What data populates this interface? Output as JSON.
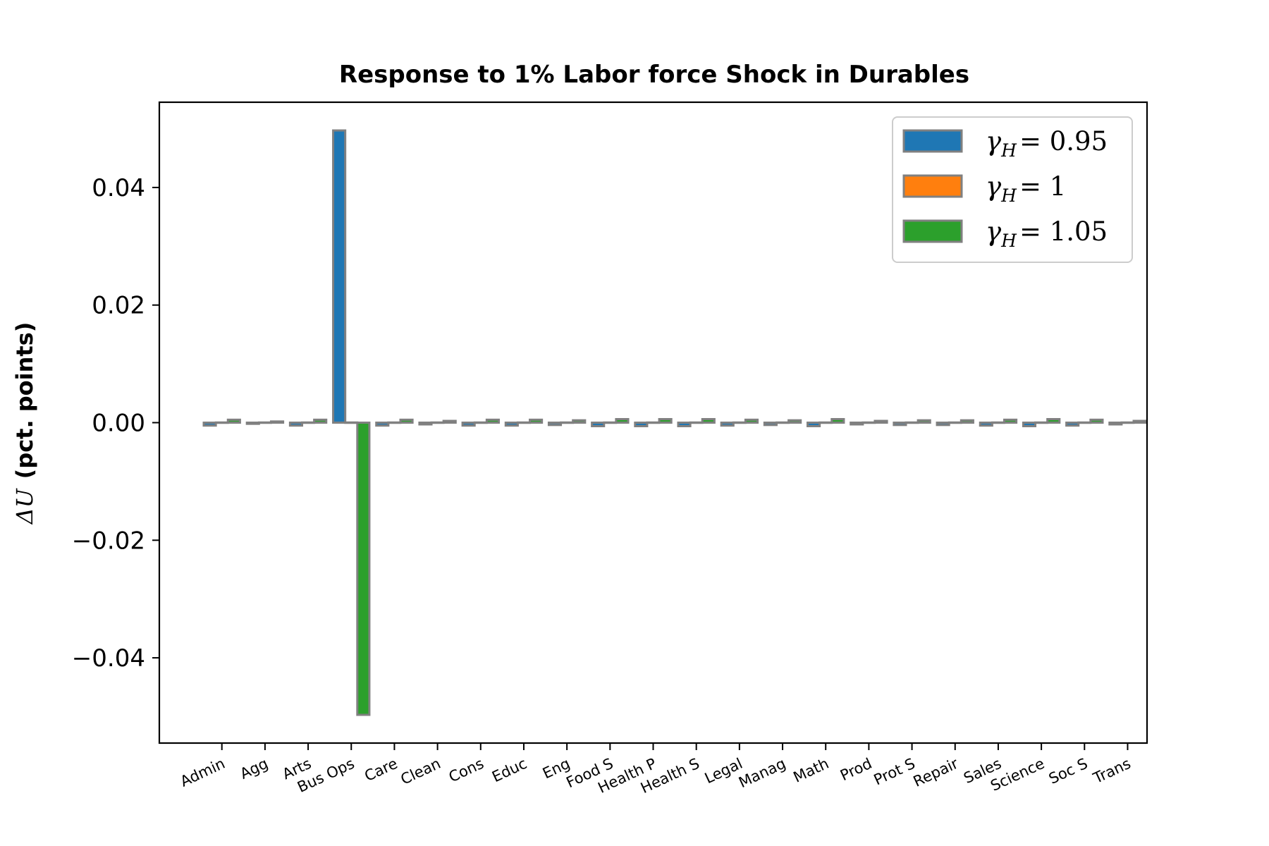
{
  "chart_data": {
    "type": "bar",
    "title": "Response to 1% Labor force Shock in Durables",
    "ylabel_math": "ΔU",
    "ylabel_text": "(pct. points)",
    "xlabel": "",
    "categories": [
      "Admin",
      "Agg",
      "Arts",
      "Bus Ops",
      "Care",
      "Clean",
      "Cons",
      "Educ",
      "Eng",
      "Food S",
      "Health P",
      "Health S",
      "Legal",
      "Manag",
      "Math",
      "Prod",
      "Prot S",
      "Repair",
      "Sales",
      "Science",
      "Soc S",
      "Trans"
    ],
    "series": [
      {
        "name_symbol": "γ",
        "name_sub": "H",
        "name_value": "= 0.95",
        "color": "#1f77b4",
        "values": [
          -0.0005,
          -0.0002,
          -0.0005,
          0.0497,
          -0.0005,
          -0.0003,
          -0.0005,
          -0.0005,
          -0.0004,
          -0.0006,
          -0.0006,
          -0.0006,
          -0.0005,
          -0.0004,
          -0.0006,
          -0.0003,
          -0.0004,
          -0.0004,
          -0.0005,
          -0.0006,
          -0.0005,
          -0.0003
        ]
      },
      {
        "name_symbol": "γ",
        "name_sub": "H",
        "name_value": "= 1",
        "color": "#ff7f0e",
        "values": [
          0,
          0,
          0,
          0,
          0,
          0,
          0,
          0,
          0,
          0,
          0,
          0,
          0,
          0,
          0,
          0,
          0,
          0,
          0,
          0,
          0,
          0
        ]
      },
      {
        "name_symbol": "γ",
        "name_sub": "H",
        "name_value": "= 1.05",
        "color": "#2ca02c",
        "values": [
          0.0005,
          0.0002,
          0.0005,
          -0.0497,
          0.0005,
          0.0003,
          0.0005,
          0.0005,
          0.0004,
          0.0006,
          0.0006,
          0.0006,
          0.0005,
          0.0004,
          0.0006,
          0.0003,
          0.0004,
          0.0004,
          0.0005,
          0.0006,
          0.0005,
          0.0003
        ]
      }
    ],
    "bar_edge_color": "#808080",
    "yticks": [
      -0.04,
      -0.02,
      0.0,
      0.02,
      0.04
    ],
    "ytick_labels": [
      "−0.04",
      "−0.02",
      "0.00",
      "0.02",
      "0.04"
    ],
    "ylim": [
      -0.0545,
      0.0545
    ],
    "xlim": [
      -1.45,
      21.45
    ],
    "grid": false,
    "legend_position": "top-right"
  }
}
